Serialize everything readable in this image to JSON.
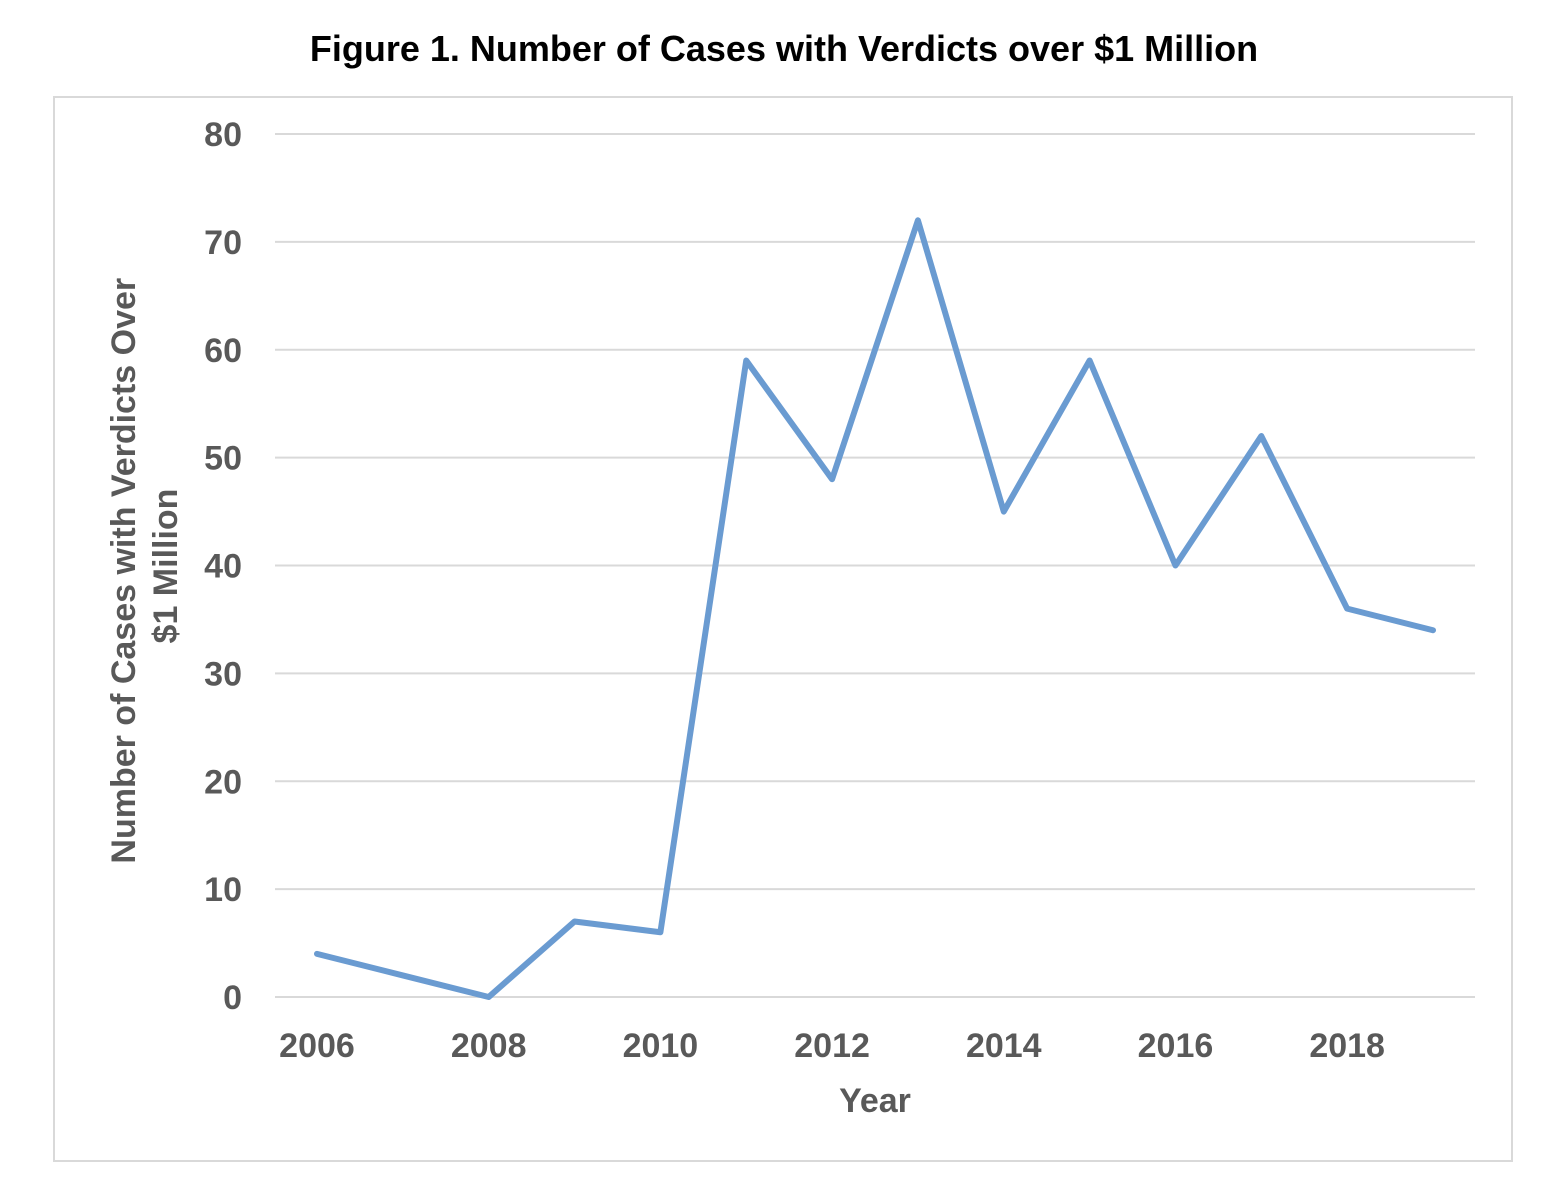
{
  "figure": {
    "title": "Figure 1.  Number of Cases with Verdicts over $1 Million"
  },
  "colors": {
    "series_line": "#6a9bd1",
    "gridline": "#d9d9d9",
    "axis_text": "#595959",
    "frame_border": "#d9d9d9"
  },
  "chart_data": {
    "type": "line",
    "title": "Figure 1.  Number of Cases with Verdicts over $1 Million",
    "xlabel": "Year",
    "ylabel_lines": [
      "Number of Cases with Verdicts Over",
      "$1 Million"
    ],
    "x": [
      2006,
      2007,
      2008,
      2009,
      2010,
      2011,
      2012,
      2013,
      2014,
      2015,
      2016,
      2017,
      2018,
      2019
    ],
    "series": [
      {
        "name": "Number of Cases with Verdicts over $1 Million",
        "values": [
          4,
          2,
          0,
          7,
          6,
          59,
          48,
          72,
          45,
          59,
          40,
          52,
          36,
          34
        ]
      }
    ],
    "xlim": [
      2006,
      2019
    ],
    "ylim": [
      0,
      80
    ],
    "x_ticks": [
      "2006",
      "2008",
      "2010",
      "2012",
      "2014",
      "2016",
      "2018"
    ],
    "y_ticks": [
      "0",
      "10",
      "20",
      "30",
      "40",
      "50",
      "60",
      "70",
      "80"
    ],
    "grid": "horizontal",
    "legend": "none"
  }
}
